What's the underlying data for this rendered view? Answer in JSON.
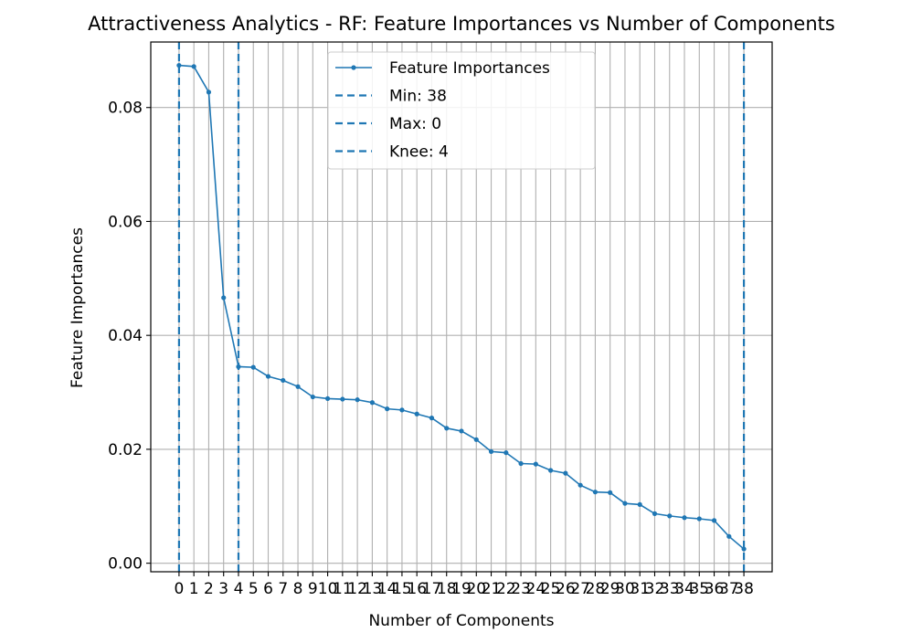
{
  "chart_data": {
    "type": "line",
    "title": "Attractiveness Analytics - RF: Feature Importances vs Number of Components",
    "xlabel": "Number of Components",
    "ylabel": "Feature Importances",
    "xlim": [
      -1.9,
      39.9
    ],
    "ylim": [
      -0.0015,
      0.0915
    ],
    "grid": true,
    "legend_position": "top-center",
    "x_ticks": [
      0,
      1,
      2,
      3,
      4,
      5,
      6,
      7,
      8,
      9,
      10,
      11,
      12,
      13,
      14,
      15,
      16,
      17,
      18,
      19,
      20,
      21,
      22,
      23,
      24,
      25,
      26,
      27,
      28,
      29,
      30,
      31,
      32,
      33,
      34,
      35,
      36,
      37,
      38
    ],
    "x_tick_labels": [
      "0",
      "1",
      "2",
      "3",
      "4",
      "5",
      "6",
      "7",
      "8",
      "9",
      "10",
      "11",
      "12",
      "13",
      "14",
      "15",
      "16",
      "17",
      "18",
      "19",
      "20",
      "21",
      "22",
      "23",
      "24",
      "25",
      "26",
      "27",
      "28",
      "29",
      "30",
      "31",
      "32",
      "33",
      "34",
      "35",
      "36",
      "37",
      "38"
    ],
    "y_ticks": [
      0.0,
      0.02,
      0.04,
      0.06,
      0.08
    ],
    "y_tick_labels": [
      "0.00",
      "0.02",
      "0.04",
      "0.06",
      "0.08"
    ],
    "series": [
      {
        "name": "Feature Importances",
        "color": "#1f77b4",
        "x": [
          0,
          1,
          2,
          3,
          4,
          5,
          6,
          7,
          8,
          9,
          10,
          11,
          12,
          13,
          14,
          15,
          16,
          17,
          18,
          19,
          20,
          21,
          22,
          23,
          24,
          25,
          26,
          27,
          28,
          29,
          30,
          31,
          32,
          33,
          34,
          35,
          36,
          37,
          38
        ],
        "y": [
          0.0874,
          0.0872,
          0.0827,
          0.0466,
          0.0345,
          0.0344,
          0.0328,
          0.0321,
          0.031,
          0.0292,
          0.0289,
          0.0288,
          0.0287,
          0.0282,
          0.0271,
          0.0269,
          0.0262,
          0.0255,
          0.0237,
          0.0232,
          0.0217,
          0.0196,
          0.0194,
          0.0175,
          0.0174,
          0.0163,
          0.0158,
          0.0137,
          0.0125,
          0.0124,
          0.0105,
          0.0103,
          0.0087,
          0.0083,
          0.008,
          0.0078,
          0.0075,
          0.0047,
          0.0025
        ]
      }
    ],
    "vlines": [
      {
        "name": "Min: 38",
        "x": 38,
        "color": "#1f77b4",
        "style": "dashed"
      },
      {
        "name": "Max: 0",
        "x": 0,
        "color": "#1f77b4",
        "style": "dashed"
      },
      {
        "name": "Knee: 4",
        "x": 4,
        "color": "#1f77b4",
        "style": "dashed"
      }
    ]
  }
}
